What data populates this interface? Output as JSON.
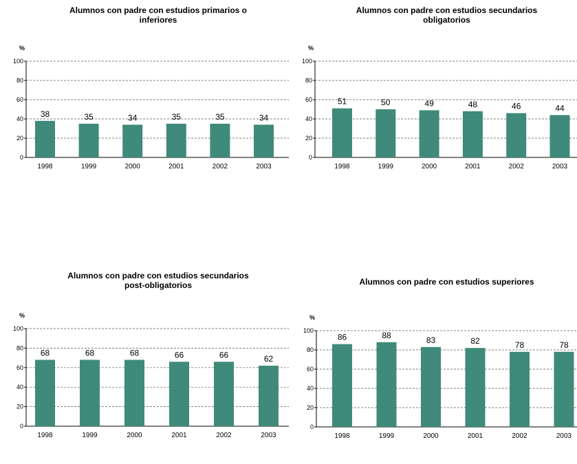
{
  "chart_data": [
    {
      "type": "bar",
      "title": "Alumnos con padre con estudios primarios o\ninferiores",
      "ylabel": "%",
      "ylim": [
        0,
        100
      ],
      "yticks": [
        0,
        20,
        40,
        60,
        80,
        100
      ],
      "grid": true,
      "color": "#3f8a7a",
      "categories": [
        "1998",
        "1999",
        "2000",
        "2001",
        "2002",
        "2003"
      ],
      "values": [
        38,
        35,
        34,
        35,
        35,
        34
      ],
      "labels": [
        "38",
        "35",
        "34",
        "35",
        "35",
        "34"
      ]
    },
    {
      "type": "bar",
      "title": "Alumnos con padre con estudios secundarios\nobligatorios",
      "ylabel": "%",
      "ylim": [
        0,
        100
      ],
      "yticks": [
        0,
        20,
        40,
        60,
        80,
        100
      ],
      "grid": true,
      "color": "#3f8a7a",
      "categories": [
        "1998",
        "1999",
        "2000",
        "2001",
        "2002",
        "2003"
      ],
      "values": [
        51,
        50,
        49,
        48,
        46,
        44
      ],
      "labels": [
        "51",
        "50",
        "49",
        "48",
        "46",
        "44"
      ]
    },
    {
      "type": "bar",
      "title": "Alumnos con padre con estudios secundarios\npost-obligatorios",
      "ylabel": "%",
      "ylim": [
        0,
        100
      ],
      "yticks": [
        0,
        20,
        40,
        60,
        80,
        100
      ],
      "grid": true,
      "color": "#3f8a7a",
      "categories": [
        "1998",
        "1999",
        "2000",
        "2001",
        "2002",
        "2003"
      ],
      "values": [
        68,
        68,
        68,
        66,
        66,
        62
      ],
      "labels": [
        "68",
        "68",
        "68",
        "66",
        "66",
        "62"
      ]
    },
    {
      "type": "bar",
      "title": "Alumnos con padre con estudios superiores",
      "ylabel": "%",
      "ylim": [
        0,
        100
      ],
      "yticks": [
        0,
        20,
        40,
        60,
        80,
        100
      ],
      "grid": true,
      "color": "#3f8a7a",
      "categories": [
        "1998",
        "1999",
        "2000",
        "2001",
        "2002",
        "2003"
      ],
      "values": [
        86,
        88,
        83,
        82,
        78,
        78
      ],
      "labels": [
        "86",
        "88",
        "83",
        "82",
        "78",
        "78"
      ]
    }
  ]
}
